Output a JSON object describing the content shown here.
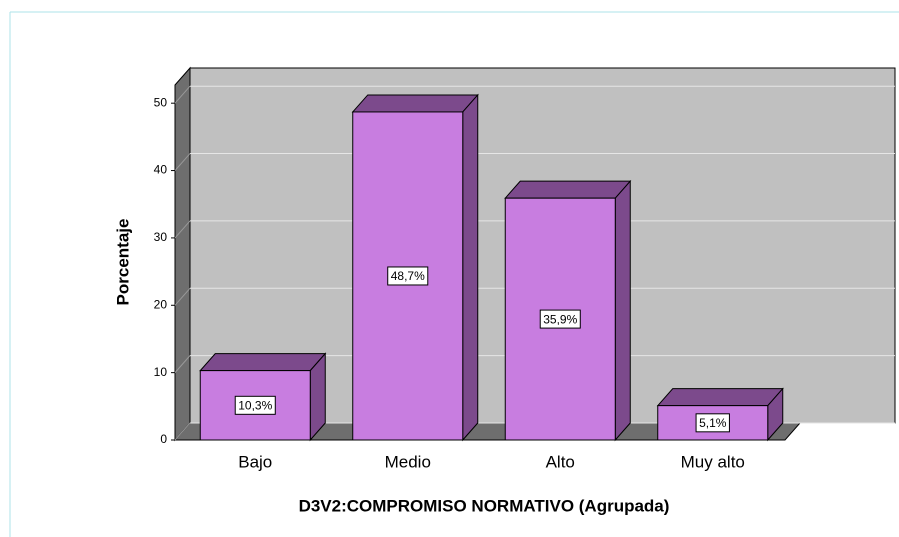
{
  "chart_data": {
    "type": "bar3d",
    "x_label": "D3V2:COMPROMISO NORMATIVO (Agrupada)",
    "y_label": "Porcentaje",
    "categories": [
      "Bajo",
      "Medio",
      "Alto",
      "Muy alto"
    ],
    "values": [
      10.3,
      48.7,
      35.9,
      5.1
    ],
    "value_labels": [
      "10,3%",
      "48,7%",
      "35,9%",
      "5,1%"
    ],
    "color": "#c87de0",
    "ylim": [
      0,
      52.7
    ],
    "yticks": [
      0,
      10,
      20,
      30,
      40,
      50
    ],
    "grid": true
  }
}
